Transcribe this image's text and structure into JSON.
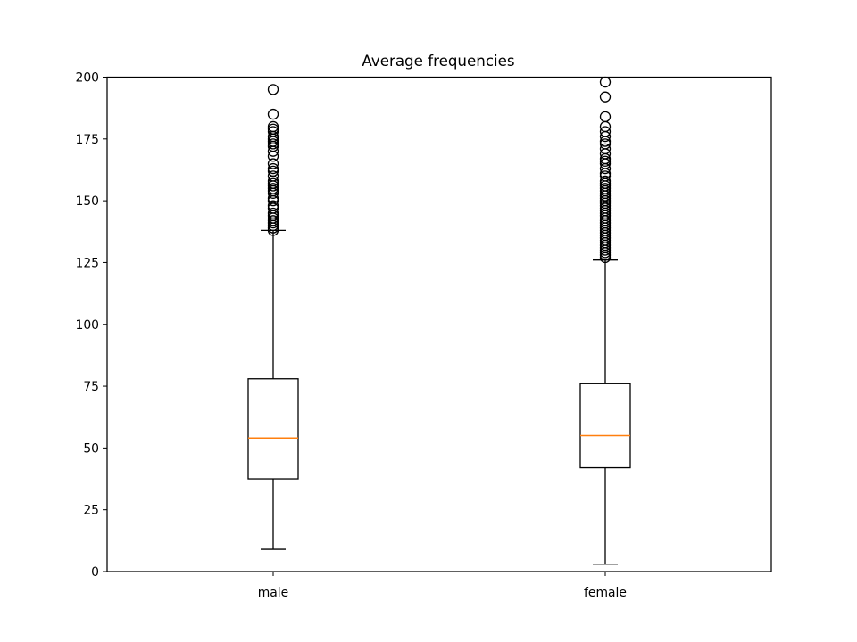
{
  "chart_data": {
    "type": "box",
    "title": "Average frequencies",
    "xlabel": "",
    "ylabel": "",
    "ylim": [
      0,
      200
    ],
    "yticks": [
      0,
      25,
      50,
      75,
      100,
      125,
      150,
      175,
      200
    ],
    "categories": [
      "male",
      "female"
    ],
    "boxes": [
      {
        "whisker_low": 9,
        "q1": 37.5,
        "median": 54,
        "q3": 78,
        "whisker_high": 138,
        "outliers": [
          138,
          139,
          140,
          141,
          142,
          143,
          144,
          145,
          147,
          148,
          150,
          151,
          153,
          154,
          155,
          156,
          157,
          158,
          160,
          162,
          163,
          165,
          168,
          170,
          172,
          173,
          174,
          175,
          176,
          178,
          179,
          180,
          185,
          195
        ]
      },
      {
        "whisker_low": 3,
        "q1": 42,
        "median": 55,
        "q3": 76,
        "whisker_high": 126,
        "outliers": [
          127,
          128,
          129,
          130,
          131,
          132,
          133,
          134,
          135,
          136,
          137,
          138,
          139,
          140,
          141,
          142,
          143,
          144,
          145,
          146,
          147,
          148,
          149,
          150,
          151,
          152,
          153,
          154,
          155,
          156,
          157,
          158,
          160,
          161,
          163,
          165,
          166,
          167,
          169,
          171,
          173,
          174,
          176,
          178,
          180,
          184,
          192,
          198
        ]
      }
    ],
    "colors": {
      "box": "#000000",
      "median": "#ff7f0e",
      "background": "#ffffff"
    },
    "grid": false
  }
}
